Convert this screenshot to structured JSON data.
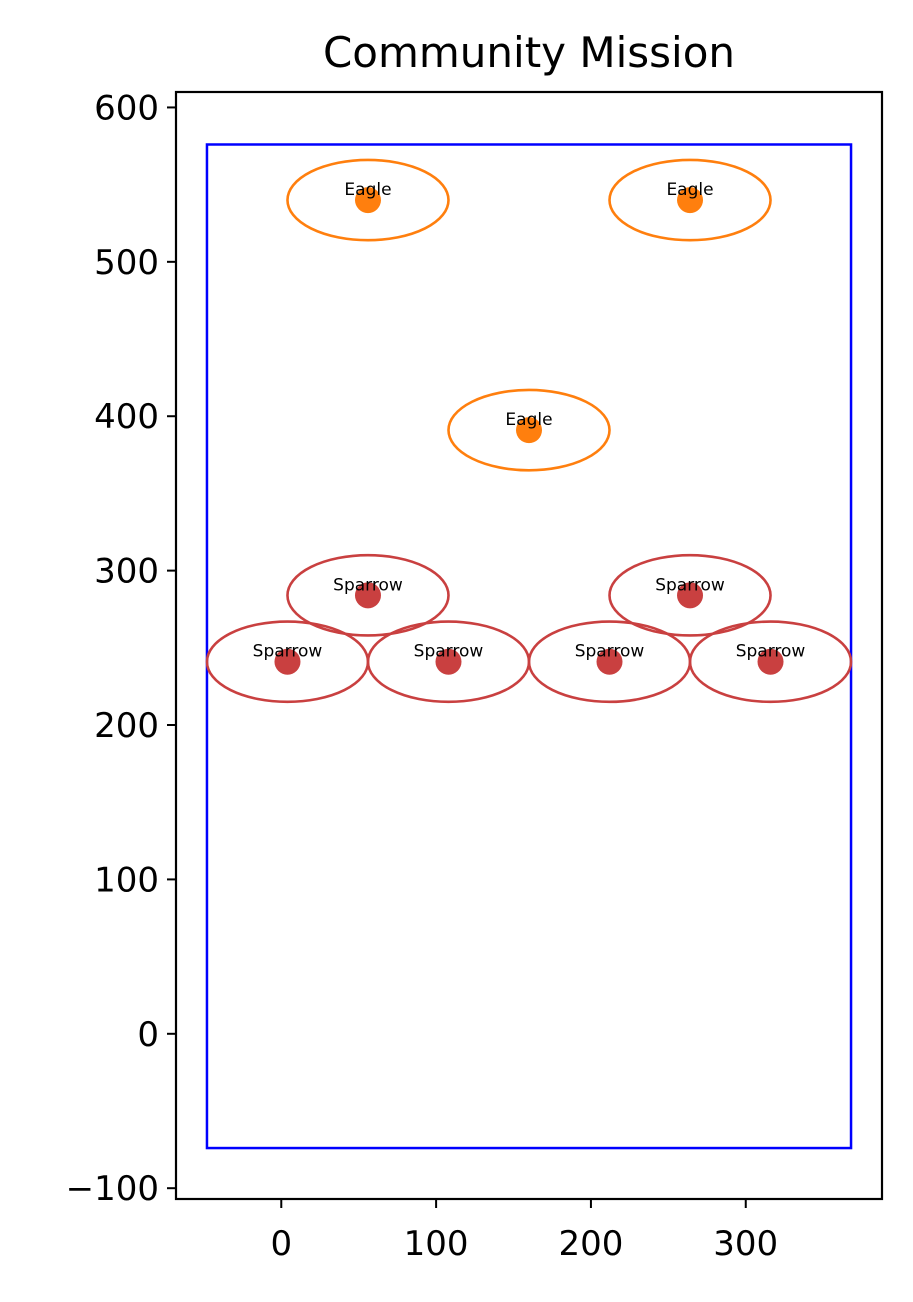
{
  "chart_data": {
    "type": "scatter",
    "title": "Community Mission",
    "xlabel": "",
    "ylabel": "",
    "xlim": [
      -68,
      388
    ],
    "ylim": [
      -107,
      610
    ],
    "x_ticks": [
      0,
      100,
      200,
      300
    ],
    "x_tick_labels": [
      "0",
      "100",
      "200",
      "300"
    ],
    "y_ticks": [
      -100,
      0,
      100,
      200,
      300,
      400,
      500,
      600
    ],
    "y_tick_labels": [
      "−100",
      "0",
      "100",
      "200",
      "300",
      "400",
      "500",
      "600"
    ],
    "grid": false,
    "boundary": {
      "x0": -48,
      "y0": -74,
      "x1": 368,
      "y1": 576,
      "color": "#0000ff"
    },
    "series": [
      {
        "name": "Eagle",
        "color": "#ff7f0e",
        "points": [
          {
            "x": 56,
            "y": 540,
            "label": "Eagle"
          },
          {
            "x": 264,
            "y": 540,
            "label": "Eagle"
          },
          {
            "x": 160,
            "y": 391,
            "label": "Eagle"
          }
        ]
      },
      {
        "name": "Sparrow",
        "color": "#c94040",
        "points": [
          {
            "x": 56,
            "y": 284,
            "label": "Sparrow"
          },
          {
            "x": 264,
            "y": 284,
            "label": "Sparrow"
          },
          {
            "x": 4,
            "y": 241,
            "label": "Sparrow"
          },
          {
            "x": 108,
            "y": 241,
            "label": "Sparrow"
          },
          {
            "x": 212,
            "y": 241,
            "label": "Sparrow"
          },
          {
            "x": 316,
            "y": 241,
            "label": "Sparrow"
          }
        ]
      }
    ],
    "ellipse": {
      "rx": 52,
      "ry": 26
    }
  }
}
